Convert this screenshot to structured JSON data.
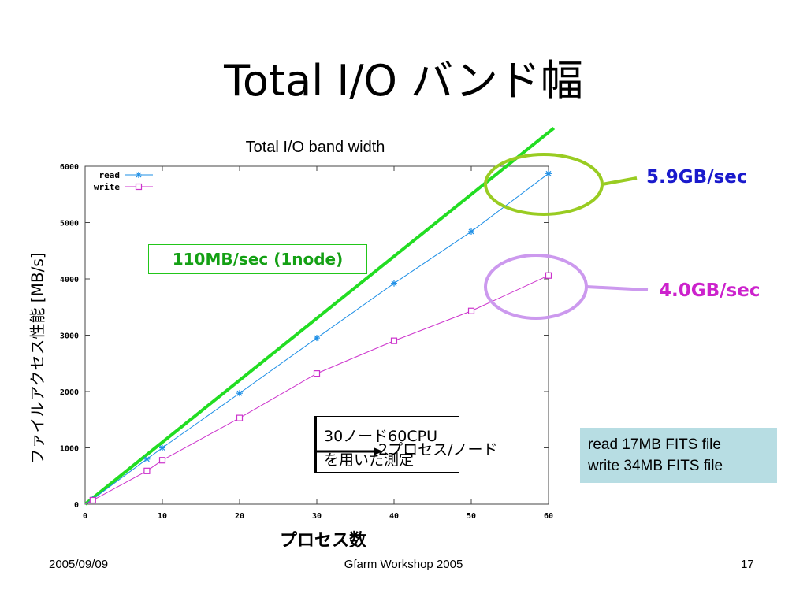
{
  "slide": {
    "title": "Total I/O バンド幅",
    "footer_date": "2005/09/09",
    "footer_center": "Gfarm Workshop 2005",
    "page_number": "17"
  },
  "annotations": {
    "green_box": "110MB/sec (1node)",
    "read_label": "5.9GB/sec",
    "write_label": "4.0GB/sec",
    "note_line1": "30ノード60CPU",
    "note_line2": "を用いた測定",
    "note_overlay": "2プロセス/ノード",
    "fits_line1": "read 17MB FITS file",
    "fits_line2": "write 34MB FITS file"
  },
  "colors": {
    "read": "#1e8fe6",
    "write": "#cc33cc",
    "ideal_line": "#22dd22",
    "read_ellipse": "#99cc22",
    "write_ellipse": "#cc99ee",
    "read_label": "#1a1acc",
    "write_label": "#cc22cc",
    "fits_box": "#b7dde3"
  },
  "chart_data": {
    "type": "line",
    "title": "Total I/O band width",
    "xlabel": "プロセス数",
    "ylabel": "ファイルアクセス性能 [MB/s]",
    "xlim": [
      0,
      60
    ],
    "ylim": [
      0,
      6000
    ],
    "xticks": [
      0,
      10,
      20,
      30,
      40,
      50,
      60
    ],
    "yticks": [
      0,
      1000,
      2000,
      3000,
      4000,
      5000,
      6000
    ],
    "legend_position": "top-left",
    "series": [
      {
        "name": "read",
        "marker": "star",
        "x": [
          1,
          8,
          10,
          20,
          30,
          40,
          50,
          60
        ],
        "y": [
          90,
          800,
          1000,
          1970,
          2950,
          3920,
          4840,
          5870
        ]
      },
      {
        "name": "write",
        "marker": "square",
        "x": [
          1,
          8,
          10,
          20,
          30,
          40,
          50,
          60
        ],
        "y": [
          70,
          590,
          780,
          1530,
          2320,
          2900,
          3430,
          4060
        ]
      }
    ],
    "ideal_line": {
      "slope_per_process": 110
    }
  }
}
